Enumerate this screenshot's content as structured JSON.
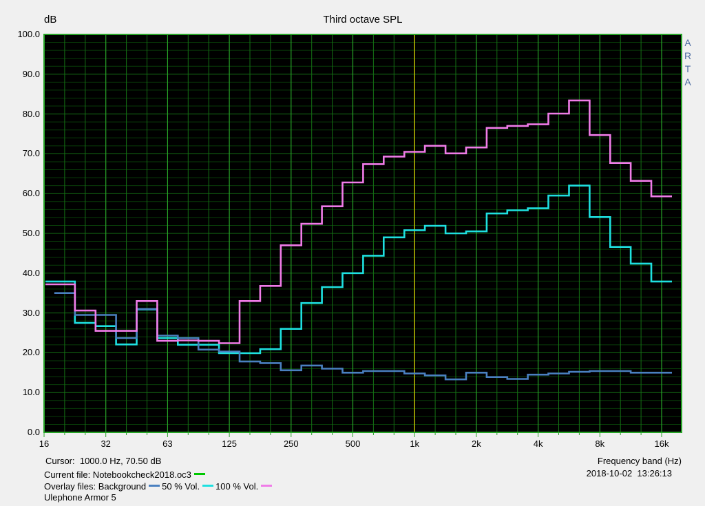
{
  "header": {
    "y_unit": "dB",
    "title": "Third octave SPL",
    "brand": "ARTA"
  },
  "footer": {
    "cursor_text": "Cursor:  1000.0 Hz, 70.50 dB",
    "current_file_label": "Current file: Notebookcheck2018.oc3",
    "overlay_label": "Overlay files: Background",
    "overlay_50_label": "50 % Vol.",
    "overlay_100_label": "100 % Vol.",
    "device": "Ulephone Armor 5",
    "x_axis_title": "Frequency band (Hz)",
    "datetime": "2018-10-02  13:26:13"
  },
  "colors": {
    "page_bg": "#f0f0f0",
    "plot_bg": "#000000",
    "grid_h_minor": "#083c08",
    "grid_h_major": "#157015",
    "grid_v_minor": "#157015",
    "grid_v_major": "#28a428",
    "border": "#28a428",
    "cursor": "#b8b800",
    "brand_text": "#4a6aa0",
    "file_marker": "#00c800",
    "background_marker": "#4a80c0",
    "vol50_marker": "#1ee0e0",
    "vol100_marker": "#f07ce8"
  },
  "chart_data": {
    "type": "line",
    "style": "third-octave stepped bands",
    "title": "Third octave SPL",
    "xlabel": "Frequency band (Hz)",
    "ylabel": "dB",
    "ylim": [
      0,
      100
    ],
    "grid": true,
    "categories": [
      "16",
      "20",
      "25",
      "31.5",
      "40",
      "50",
      "63",
      "80",
      "100",
      "125",
      "160",
      "200",
      "250",
      "315",
      "400",
      "500",
      "630",
      "800",
      "1k",
      "1.25k",
      "1.6k",
      "2k",
      "2.5k",
      "3.15k",
      "4k",
      "5k",
      "6.3k",
      "8k",
      "10k",
      "12.5k",
      "16k"
    ],
    "y_ticks": [
      "100.0",
      "90.0",
      "80.0",
      "70.0",
      "60.0",
      "50.0",
      "40.0",
      "30.0",
      "20.0",
      "10.0",
      "0.0"
    ],
    "x_major_labels": [
      "16",
      "32",
      "63",
      "125",
      "250",
      "500",
      "1k",
      "2k",
      "4k",
      "8k",
      "16k"
    ],
    "draw_order": [
      1,
      0,
      2
    ],
    "series": [
      {
        "name": "Background",
        "color": "#4a80c0",
        "values": [
          null,
          35,
          29.5,
          29.5,
          23.7,
          31,
          24.3,
          23.7,
          20.8,
          20.3,
          17.8,
          17.4,
          15.6,
          16.8,
          16,
          15,
          15.4,
          15.4,
          14.8,
          14.3,
          13.3,
          15,
          13.9,
          13.4,
          14.5,
          14.8,
          15.2,
          15.4,
          15.4,
          15,
          15
        ]
      },
      {
        "name": "50 % Vol.",
        "color": "#1ee0e0",
        "values": [
          37.9,
          37.9,
          27.5,
          26.7,
          22.1,
          30.9,
          23.7,
          22,
          22,
          19.9,
          19.9,
          20.9,
          26,
          32.5,
          36.5,
          40,
          44.4,
          49,
          50.8,
          51.9,
          50,
          50.5,
          55,
          55.8,
          56.3,
          59.5,
          62,
          54.1,
          46.6,
          42.4,
          37.9
        ]
      },
      {
        "name": "100 % Vol.",
        "color": "#f07ce8",
        "values": [
          37.2,
          37.2,
          30.6,
          25.5,
          25.5,
          33,
          23,
          23.1,
          23,
          22.4,
          33,
          36.8,
          47,
          52.4,
          56.8,
          62.8,
          67.4,
          69.3,
          70.5,
          72,
          70.1,
          71.6,
          76.5,
          77,
          77.4,
          80.1,
          83.4,
          74.7,
          67.7,
          63.2,
          59.3
        ]
      }
    ],
    "cursor": {
      "band_index": 18,
      "frequency": "1000.0 Hz",
      "value_db": 70.5
    }
  }
}
